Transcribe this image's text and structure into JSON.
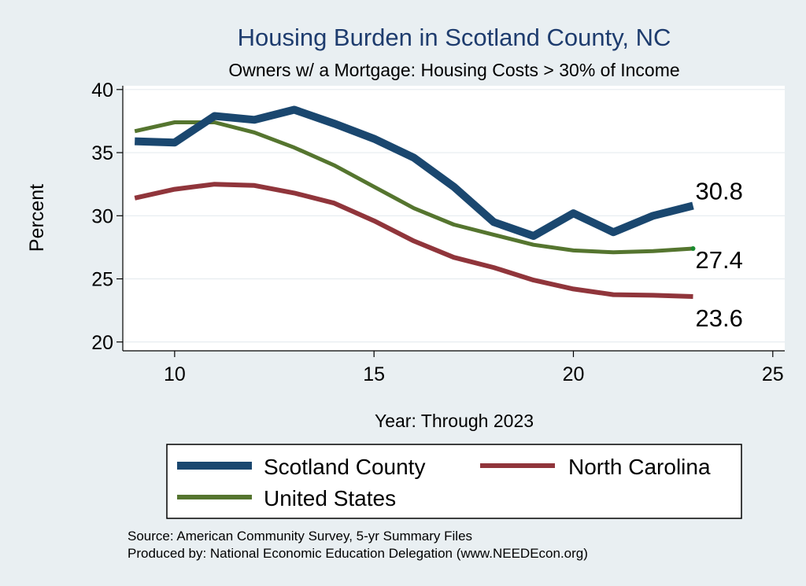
{
  "chart_data": {
    "type": "line",
    "title": "Housing Burden in Scotland County, NC",
    "subtitle": "Owners w/ a Mortgage: Housing Costs > 30% of Income",
    "xlabel": "Year: Through 2023",
    "ylabel": "Percent",
    "xlim": [
      8.7,
      25.3
    ],
    "ylim": [
      19.3,
      40.3
    ],
    "xticks": [
      10,
      15,
      20,
      25
    ],
    "yticks": [
      20,
      25,
      30,
      35,
      40
    ],
    "grid": true,
    "series": [
      {
        "name": "Scotland County",
        "color": "#1a476f",
        "x": [
          9,
          10,
          11,
          12,
          13,
          14,
          15,
          16,
          17,
          18,
          19,
          20,
          21,
          22,
          23
        ],
        "values": [
          35.9,
          35.8,
          37.9,
          37.6,
          38.4,
          37.3,
          36.1,
          34.6,
          32.3,
          29.5,
          28.4,
          30.2,
          28.7,
          30.0,
          30.8
        ],
        "end_label": "30.8"
      },
      {
        "name": "North Carolina",
        "color": "#90353b",
        "x": [
          9,
          10,
          11,
          12,
          13,
          14,
          15,
          16,
          17,
          18,
          19,
          20,
          21,
          22,
          23
        ],
        "values": [
          31.4,
          32.1,
          32.5,
          32.4,
          31.8,
          31.0,
          29.6,
          28.0,
          26.7,
          25.9,
          24.9,
          24.2,
          23.75,
          23.7,
          23.6
        ],
        "end_label": "23.6"
      },
      {
        "name": "United States",
        "color": "#55752f",
        "x": [
          9,
          10,
          11,
          12,
          13,
          14,
          15,
          16,
          17,
          18,
          19,
          20,
          21,
          22,
          23
        ],
        "values": [
          36.7,
          37.4,
          37.4,
          36.6,
          35.4,
          34.0,
          32.3,
          30.6,
          29.3,
          28.5,
          27.7,
          27.25,
          27.1,
          27.2,
          27.4
        ],
        "end_label": "27.4"
      }
    ],
    "legend_position": "bottom",
    "source_line": "Source: American Community Survey, 5-yr Summary Files",
    "produced_line": "Produced by: National Economic Education Delegation (www.NEEDEcon.org)"
  }
}
